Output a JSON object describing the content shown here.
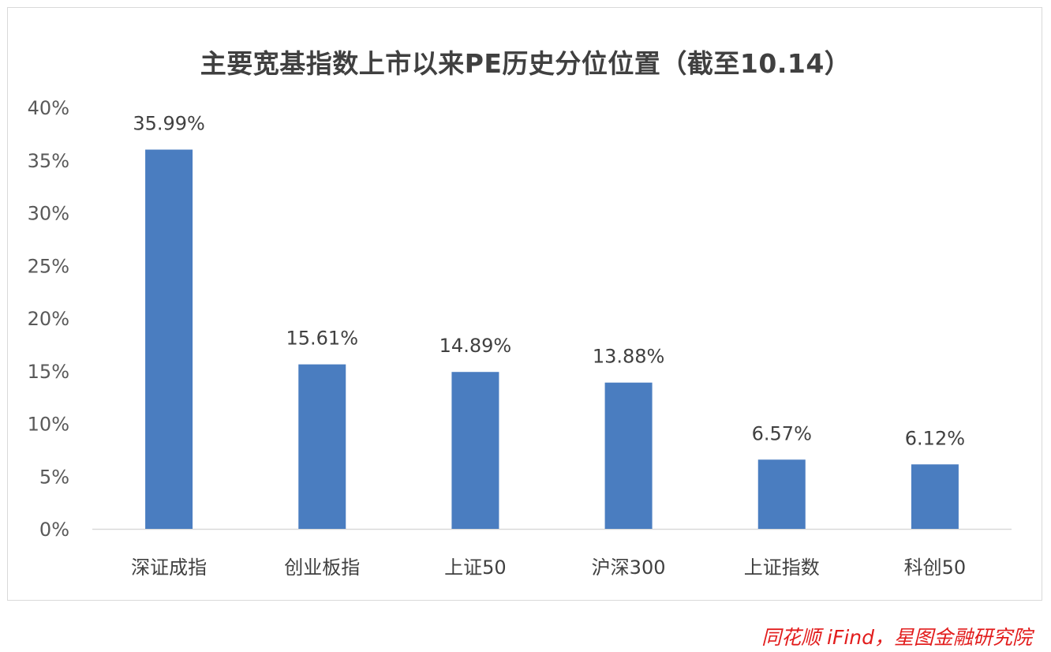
{
  "chart_data": {
    "type": "bar",
    "title": "主要宽基指数上市以来PE历史分位位置（截至10.14）",
    "categories": [
      "深证成指",
      "创业板指",
      "上证50",
      "沪深300",
      "上证指数",
      "科创50"
    ],
    "values": [
      35.99,
      15.61,
      14.89,
      13.88,
      6.57,
      6.12
    ],
    "data_labels": [
      "35.99%",
      "15.61%",
      "14.89%",
      "13.88%",
      "6.57%",
      "6.12%"
    ],
    "y_ticks": [
      0,
      5,
      10,
      15,
      20,
      25,
      30,
      35,
      40
    ],
    "y_tick_labels": [
      "0%",
      "5%",
      "10%",
      "15%",
      "20%",
      "25%",
      "30%",
      "35%",
      "40%"
    ],
    "ylim": [
      0,
      40
    ],
    "xlabel": "",
    "ylabel": "",
    "grid": false,
    "legend": "none",
    "bar_color": "#4a7dc0"
  },
  "source": "同花顺 iFind，星图金融研究院"
}
